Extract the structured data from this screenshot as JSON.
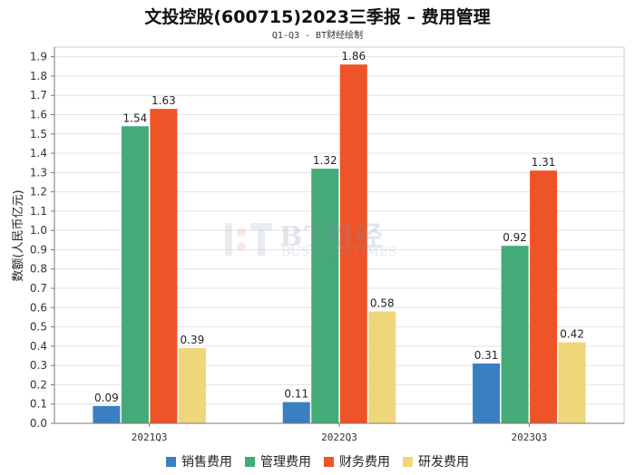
{
  "chart_data": {
    "type": "bar",
    "title": "文投控股(600715)2023三季报 – 费用管理",
    "subtitle": "Q1-Q3 - BT财经绘制",
    "xlabel": "",
    "ylabel": "数额(人民币亿元)",
    "ylim": [
      0,
      1.95
    ],
    "yticks": [
      "0.0",
      "0.1",
      "0.2",
      "0.3",
      "0.4",
      "0.5",
      "0.6",
      "0.7",
      "0.8",
      "0.9",
      "1.0",
      "1.1",
      "1.2",
      "1.3",
      "1.4",
      "1.5",
      "1.6",
      "1.7",
      "1.8",
      "1.9"
    ],
    "categories": [
      "2021Q3",
      "2022Q3",
      "2023Q3"
    ],
    "series": [
      {
        "name": "销售费用",
        "color": "#3a7fc1",
        "values": [
          0.09,
          0.11,
          0.31
        ]
      },
      {
        "name": "管理费用",
        "color": "#44aa77",
        "values": [
          1.54,
          1.32,
          0.92
        ]
      },
      {
        "name": "财务费用",
        "color": "#ee5427",
        "values": [
          1.63,
          1.86,
          1.31
        ]
      },
      {
        "name": "研发费用",
        "color": "#efd67a",
        "values": [
          0.39,
          0.58,
          0.42
        ]
      }
    ],
    "legend_position": "bottom",
    "grid": true
  },
  "watermark": {
    "big": "BT财经",
    "small": "BUSINESSTIMES"
  }
}
